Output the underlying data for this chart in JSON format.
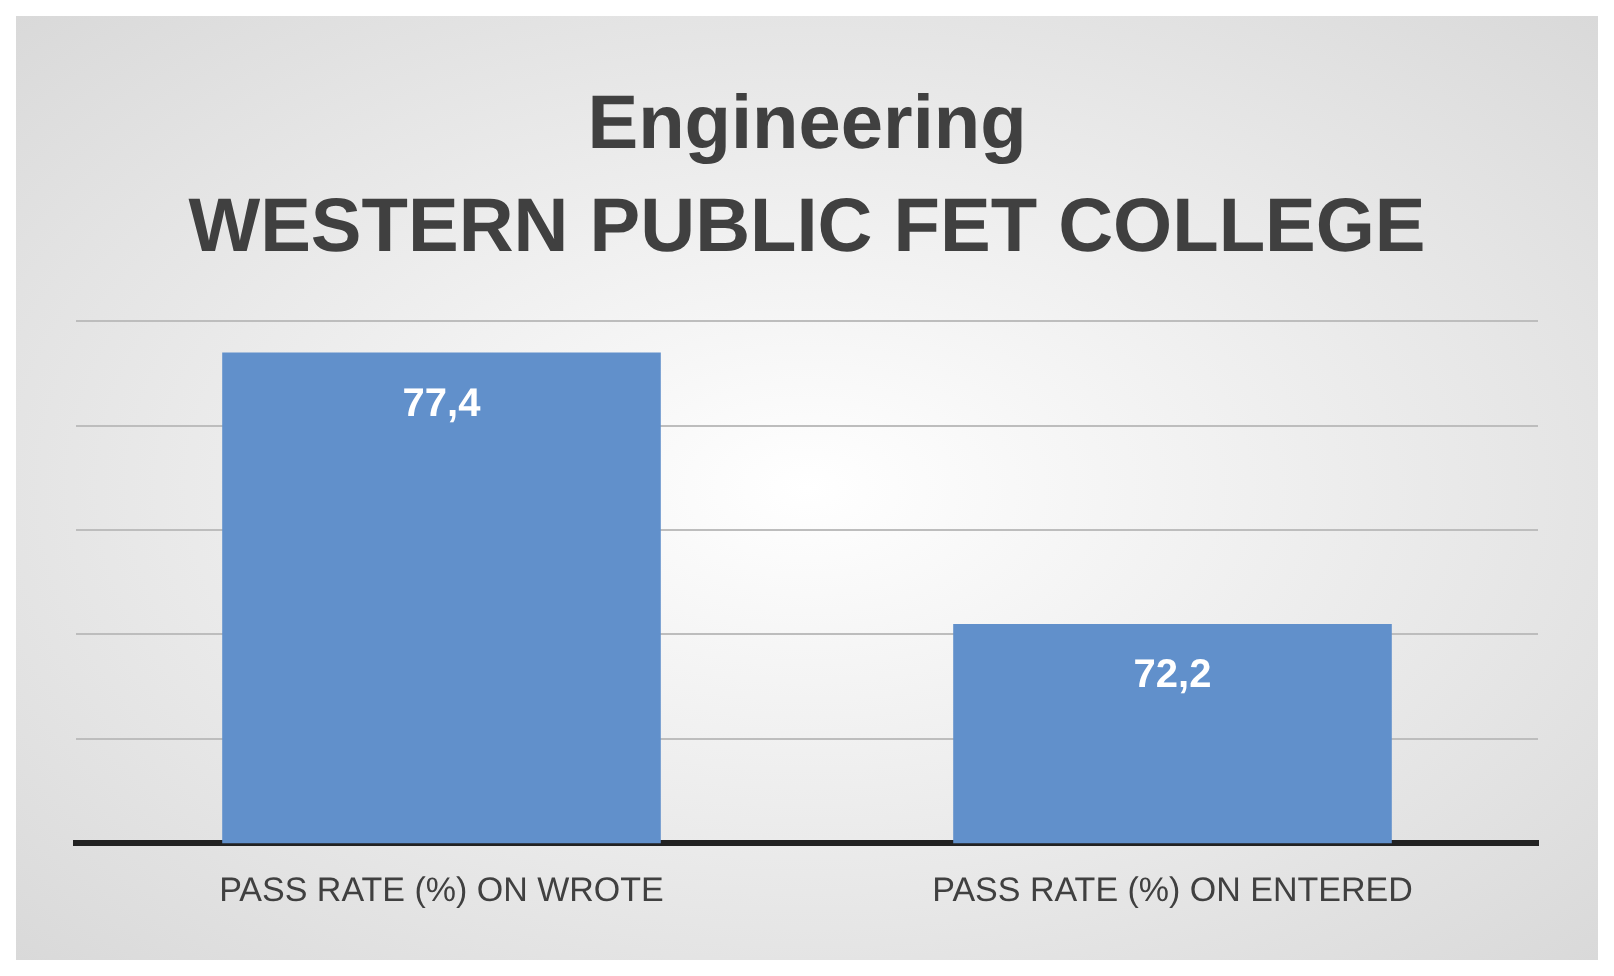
{
  "chart_data": {
    "type": "bar",
    "title": "Engineering\nWESTERN PUBLIC FET COLLEGE",
    "categories": [
      "PASS RATE (%) ON WROTE",
      "PASS RATE (%) ON ENTERED"
    ],
    "values": [
      77.4,
      72.2
    ],
    "value_labels": [
      "77,4",
      "72,2"
    ],
    "color": "#6190cb",
    "ylim": [
      68,
      78
    ],
    "yticks": [
      {
        "value": 68,
        "label": null
      },
      {
        "value": 70,
        "label": null
      },
      {
        "value": 72,
        "label": null
      },
      {
        "value": 74,
        "label": null
      },
      {
        "value": 76,
        "label": null
      },
      {
        "value": 78,
        "label": null
      }
    ],
    "grid": "y",
    "tick_labels": "x"
  }
}
